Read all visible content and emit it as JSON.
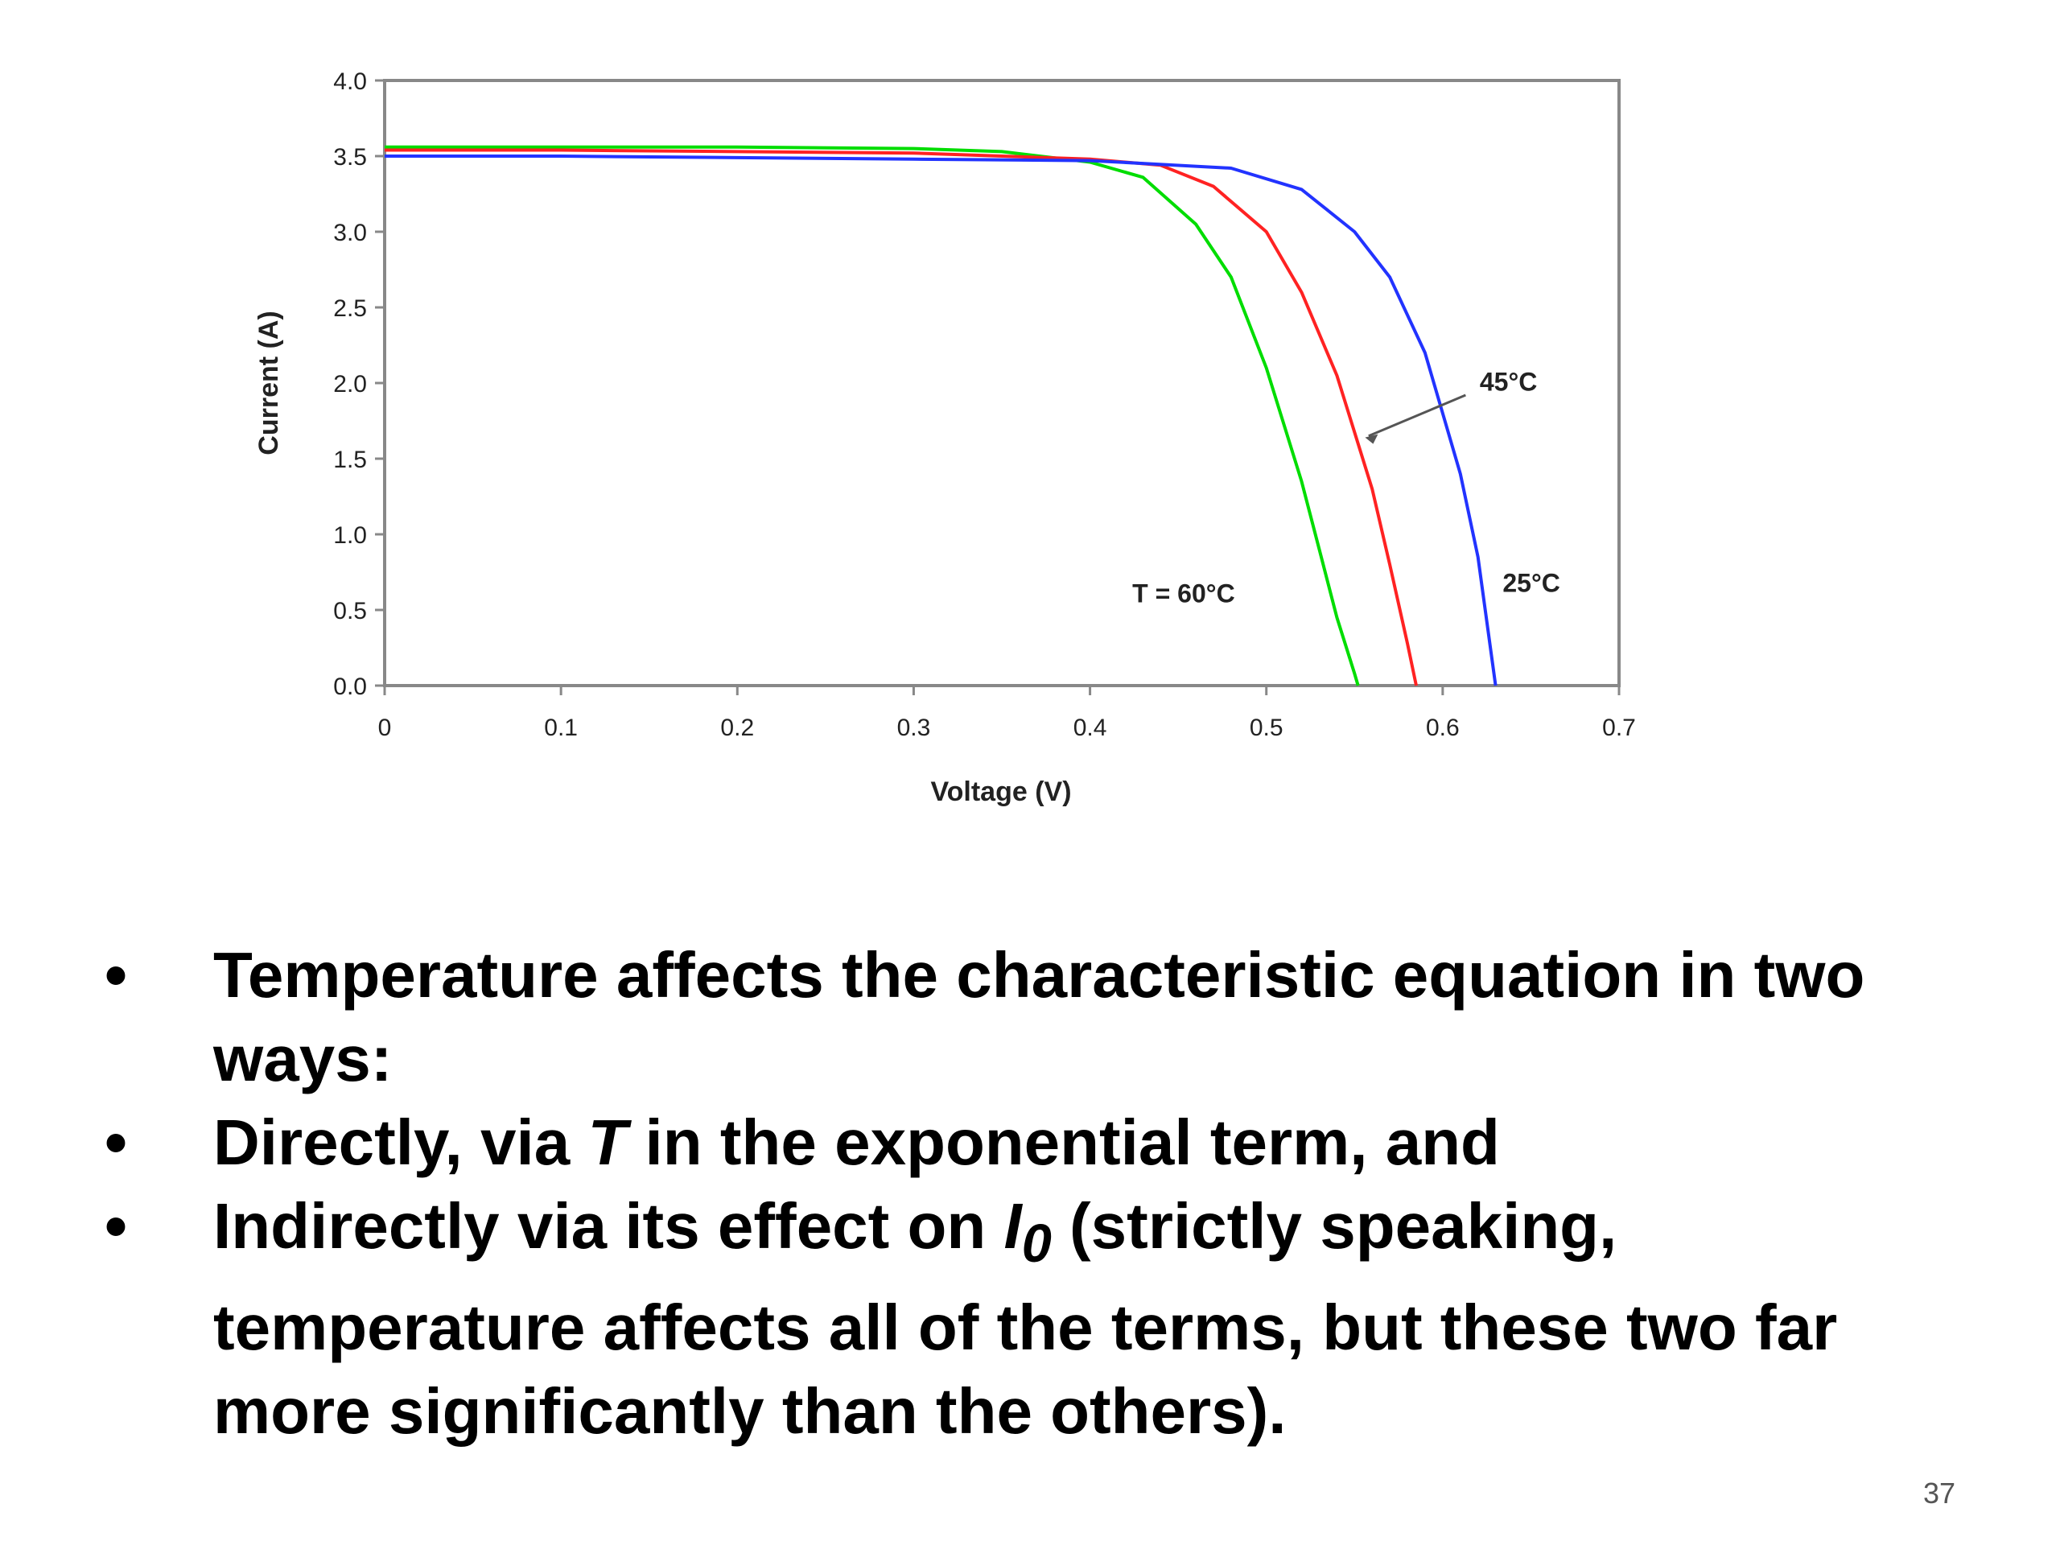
{
  "chart_data": {
    "type": "line",
    "xlabel": "Voltage (V)",
    "ylabel": "Current (A)",
    "xlim": [
      0,
      0.7
    ],
    "ylim": [
      0,
      4.0
    ],
    "x_ticks": [
      "0",
      "0.1",
      "0.2",
      "0.3",
      "0.4",
      "0.5",
      "0.6",
      "0.7"
    ],
    "y_ticks": [
      "0.0",
      "0.5",
      "1.0",
      "1.5",
      "2.0",
      "2.5",
      "3.0",
      "3.5",
      "4.0"
    ],
    "grid": false,
    "legend": "none",
    "series": [
      {
        "color": "#00dd00",
        "x": [
          0,
          0.1,
          0.2,
          0.3,
          0.35,
          0.4,
          0.43,
          0.46,
          0.48,
          0.5,
          0.52,
          0.53,
          0.54,
          0.55,
          0.552
        ],
        "y": [
          3.56,
          3.56,
          3.56,
          3.55,
          3.53,
          3.46,
          3.36,
          3.05,
          2.7,
          2.1,
          1.35,
          0.9,
          0.45,
          0.08,
          0
        ]
      },
      {
        "color": "#ff2222",
        "x": [
          0,
          0.1,
          0.2,
          0.3,
          0.4,
          0.44,
          0.47,
          0.5,
          0.52,
          0.54,
          0.56,
          0.57,
          0.58,
          0.585
        ],
        "y": [
          3.54,
          3.54,
          3.53,
          3.52,
          3.48,
          3.44,
          3.3,
          3.0,
          2.6,
          2.05,
          1.3,
          0.8,
          0.28,
          0
        ]
      },
      {
        "color": "#2233ff",
        "x": [
          0,
          0.1,
          0.2,
          0.3,
          0.4,
          0.48,
          0.52,
          0.55,
          0.57,
          0.59,
          0.61,
          0.62,
          0.63
        ],
        "y": [
          3.5,
          3.5,
          3.49,
          3.48,
          3.47,
          3.42,
          3.28,
          3.0,
          2.7,
          2.2,
          1.4,
          0.85,
          0
        ]
      }
    ],
    "annotations": [
      "45°C",
      "T = 60°C",
      "25°C"
    ]
  },
  "bullets": [
    {
      "mark": "•",
      "parts": [
        "Temperature affects the characteristic equation in two ways:"
      ]
    },
    {
      "mark": "•",
      "parts": [
        "Directly, via ",
        "T",
        " in the exponential term, and"
      ]
    },
    {
      "mark": "•",
      "parts": [
        "Indirectly via its effect on ",
        "I",
        "0",
        " (strictly speaking, temperature affects all of the terms, but these two far more significantly than the others)."
      ]
    }
  ],
  "page_number": "37"
}
